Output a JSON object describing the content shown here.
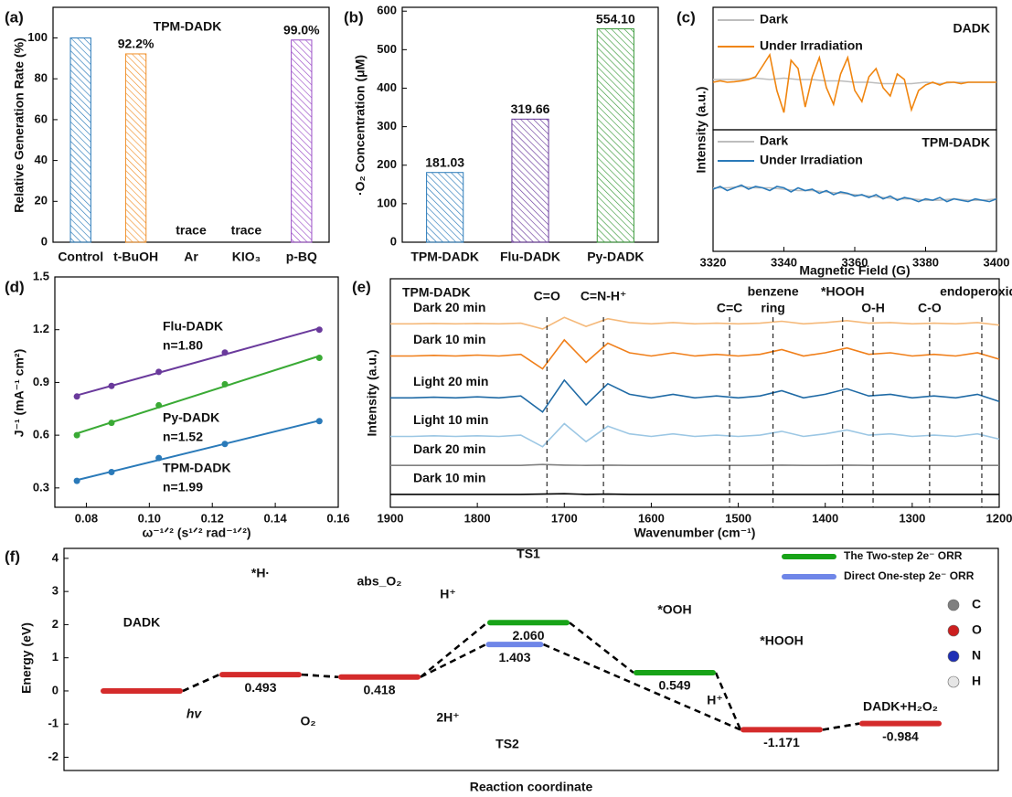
{
  "chart_data": [
    {
      "type": "bar",
      "panel_label": "(a)",
      "annotation": "TPM-DADK",
      "annotation_color": "#2a7ab9",
      "ylabel": "Relative Generation Rate (%)",
      "categories": [
        "Control",
        "t-BuOH",
        "Ar",
        "KIO₃",
        "p-BQ"
      ],
      "values": [
        100,
        92.2,
        null,
        null,
        99.0
      ],
      "value_labels": [
        null,
        "92.2%",
        "trace",
        "trace",
        "99.0%"
      ],
      "colors": [
        "#2a7ab9",
        "#f0902a",
        "#2a7ab9",
        "#2a7ab9",
        "#9b4fc7"
      ],
      "ylim": [
        0,
        115
      ],
      "yticks": [
        0,
        20,
        40,
        60,
        80,
        100
      ]
    },
    {
      "type": "bar",
      "panel_label": "(b)",
      "ylabel": "·O₂ Concentration (μM)",
      "categories": [
        "TPM-DADK",
        "Flu-DADK",
        "Py-DADK"
      ],
      "values": [
        181.03,
        319.66,
        554.1
      ],
      "value_labels": [
        "181.03",
        "319.66",
        "554.10"
      ],
      "colors": [
        "#2a7ab9",
        "#6a3a9c",
        "#3a9a3a"
      ],
      "ylim": [
        0,
        610
      ],
      "yticks": [
        0,
        100,
        200,
        300,
        400,
        500,
        600
      ]
    },
    {
      "type": "line",
      "panel_label": "(c)",
      "annotation": "DADK",
      "annotation_color": "#f0850f",
      "xlim": [
        3320,
        3400
      ],
      "ylim": [
        -1.73,
        2.73
      ],
      "series": [
        {
          "name": "Dark",
          "color": "#bdbdbd",
          "x": [
            3320,
            3324,
            3328,
            3332,
            3336,
            3340,
            3344,
            3348,
            3352,
            3356,
            3360,
            3364,
            3368,
            3372,
            3376,
            3380,
            3384,
            3388,
            3392,
            3396,
            3400
          ],
          "values": [
            0.1,
            0.1,
            0.1,
            0.15,
            0.1,
            0.15,
            0.1,
            0.1,
            0.05,
            0.05,
            0,
            0,
            -0.05,
            -0.05,
            -0.05,
            0,
            -0.05,
            0,
            0,
            0,
            0
          ]
        },
        {
          "name": "Under Irradiation",
          "color": "#f0850f",
          "x": [
            3320,
            3322,
            3324,
            3326,
            3328,
            3330,
            3332,
            3334,
            3336,
            3338,
            3340,
            3342,
            3344,
            3346,
            3348,
            3350,
            3352,
            3354,
            3356,
            3358,
            3360,
            3362,
            3364,
            3366,
            3368,
            3370,
            3372,
            3374,
            3376,
            3378,
            3380,
            3382,
            3384,
            3386,
            3388,
            3390,
            3392,
            3394,
            3396,
            3398,
            3400
          ],
          "values": [
            0,
            0.05,
            0,
            0.02,
            0.05,
            0.1,
            0.2,
            0.6,
            1.0,
            -0.3,
            -1.1,
            0.8,
            0.5,
            -0.9,
            0.2,
            0.9,
            -0.2,
            -0.8,
            0.3,
            0.9,
            -0.3,
            -0.7,
            0.2,
            0.5,
            -0.2,
            -0.5,
            0.3,
            0.1,
            -1.0,
            -0.3,
            -0.1,
            0,
            -0.1,
            0,
            0,
            -0.05,
            0,
            0,
            0,
            0,
            0
          ]
        }
      ]
    },
    {
      "type": "line",
      "annotation": "TPM-DADK",
      "annotation_color": "#2a7ab9",
      "xlabel": "Magnetic Field (G)",
      "ylabel": "Intensity (a.u.)",
      "xlim": [
        3320,
        3400
      ],
      "xticks": [
        3320,
        3340,
        3360,
        3380,
        3400
      ],
      "ylim": [
        -2,
        2.4
      ],
      "series": [
        {
          "name": "Dark",
          "color": "#bdbdbd",
          "x": [
            3320,
            3324,
            3328,
            3332,
            3336,
            3340,
            3344,
            3348,
            3352,
            3356,
            3360,
            3364,
            3368,
            3372,
            3376,
            3380,
            3384,
            3388,
            3392,
            3396,
            3400
          ],
          "values": [
            0.3,
            0.3,
            0.35,
            0.3,
            0.3,
            0.25,
            0.2,
            0.2,
            0.15,
            0.1,
            0.05,
            0,
            -0.05,
            -0.1,
            -0.1,
            -0.15,
            -0.15,
            -0.1,
            -0.15,
            -0.15,
            -0.1
          ]
        },
        {
          "name": "Under Irradiation",
          "color": "#2a7ab9",
          "x": [
            3320,
            3322,
            3324,
            3326,
            3328,
            3330,
            3332,
            3334,
            3336,
            3338,
            3340,
            3342,
            3344,
            3346,
            3348,
            3350,
            3352,
            3354,
            3356,
            3358,
            3360,
            3362,
            3364,
            3366,
            3368,
            3370,
            3372,
            3374,
            3376,
            3378,
            3380,
            3382,
            3384,
            3386,
            3388,
            3390,
            3392,
            3394,
            3396,
            3398,
            3400
          ],
          "values": [
            0.25,
            0.35,
            0.2,
            0.3,
            0.4,
            0.25,
            0.35,
            0.3,
            0.2,
            0.35,
            0.3,
            0.15,
            0.3,
            0.2,
            0.25,
            0.1,
            0.2,
            0.05,
            0.15,
            0.1,
            0,
            0.05,
            -0.05,
            0.05,
            -0.1,
            0,
            -0.15,
            -0.05,
            -0.1,
            -0.2,
            -0.1,
            -0.15,
            -0.05,
            -0.2,
            -0.1,
            -0.15,
            -0.2,
            -0.1,
            -0.15,
            -0.2,
            -0.1
          ]
        }
      ]
    },
    {
      "type": "scatter",
      "panel_label": "(d)",
      "xlabel": "ω⁻¹ᐟ² (s¹ᐟ² rad⁻¹ᐟ²)",
      "ylabel": "J⁻¹ (mA⁻¹ cm²)",
      "xlim": [
        0.07,
        0.16
      ],
      "xticks": [
        0.08,
        {
          "value": 0.1,
          "label": "0.10"
        },
        0.12,
        0.14,
        0.16
      ],
      "ylim": [
        0.19,
        1.5
      ],
      "yticks": [
        0.3,
        0.6,
        0.9,
        1.2,
        1.5
      ],
      "series": [
        {
          "name": "Flu-DADK",
          "annotation": "n=1.80",
          "color": "#6a3a9c",
          "x": [
            0.077,
            0.088,
            0.103,
            0.124,
            0.154
          ],
          "values": [
            0.82,
            0.88,
            0.96,
            1.07,
            1.2
          ]
        },
        {
          "name": "Py-DADK",
          "annotation": "n=1.52",
          "color": "#3aaa35",
          "x": [
            0.077,
            0.088,
            0.103,
            0.124,
            0.154
          ],
          "values": [
            0.6,
            0.67,
            0.77,
            0.89,
            1.04
          ]
        },
        {
          "name": "TPM-DADK",
          "annotation": "n=1.99",
          "color": "#2a7ab9",
          "x": [
            0.077,
            0.088,
            0.103,
            0.124,
            0.154
          ],
          "values": [
            0.34,
            0.39,
            0.47,
            0.55,
            0.68
          ]
        }
      ]
    },
    {
      "type": "line",
      "panel_label": "(e)",
      "annotation": "TPM-DADK",
      "annotation_color": "#2a7ab9",
      "xlabel": "Wavenumber (cm⁻¹)",
      "ylabel": "Intensity (a.u.)",
      "xlim": [
        1900,
        1200
      ],
      "xticks": [
        1900,
        1800,
        1700,
        1600,
        1500,
        1400,
        1300,
        1200
      ],
      "ylim": [
        0,
        7.1
      ],
      "x": [
        1900,
        1875,
        1850,
        1825,
        1800,
        1775,
        1750,
        1725,
        1700,
        1675,
        1650,
        1625,
        1600,
        1575,
        1550,
        1525,
        1500,
        1475,
        1450,
        1425,
        1400,
        1375,
        1350,
        1325,
        1300,
        1275,
        1250,
        1225,
        1200
      ],
      "series": [
        {
          "name": "Dark 20 min",
          "color": "#f5b97a",
          "values": [
            5.7,
            5.7,
            5.71,
            5.7,
            5.71,
            5.7,
            5.72,
            5.54,
            5.9,
            5.62,
            5.86,
            5.74,
            5.7,
            5.74,
            5.7,
            5.72,
            5.7,
            5.72,
            5.78,
            5.7,
            5.74,
            5.8,
            5.72,
            5.74,
            5.7,
            5.72,
            5.7,
            5.74,
            5.66
          ]
        },
        {
          "name": "Dark 10 min",
          "color": "#f07f1a",
          "values": [
            4.7,
            4.7,
            4.72,
            4.7,
            4.73,
            4.7,
            4.75,
            4.3,
            5.2,
            4.5,
            5.1,
            4.8,
            4.7,
            4.8,
            4.7,
            4.75,
            4.7,
            4.75,
            4.9,
            4.7,
            4.8,
            4.95,
            4.75,
            4.8,
            4.7,
            4.75,
            4.7,
            4.8,
            4.6
          ]
        },
        {
          "name": "Light 20 min",
          "color": "#1f6aa5",
          "values": [
            3.4,
            3.4,
            3.42,
            3.4,
            3.43,
            3.4,
            3.46,
            2.96,
            3.95,
            3.18,
            3.84,
            3.51,
            3.4,
            3.51,
            3.4,
            3.46,
            3.4,
            3.46,
            3.62,
            3.4,
            3.51,
            3.68,
            3.46,
            3.51,
            3.4,
            3.46,
            3.4,
            3.51,
            3.29
          ]
        },
        {
          "name": "Light 10 min",
          "color": "#9cc7e4",
          "values": [
            2.2,
            2.2,
            2.22,
            2.2,
            2.22,
            2.2,
            2.24,
            1.88,
            2.6,
            2.04,
            2.52,
            2.28,
            2.2,
            2.28,
            2.2,
            2.24,
            2.2,
            2.24,
            2.36,
            2.2,
            2.28,
            2.4,
            2.24,
            2.28,
            2.2,
            2.24,
            2.2,
            2.28,
            2.12
          ]
        },
        {
          "name": "Dark 20 min",
          "color": "#808080",
          "values": [
            1.3,
            1.3,
            1.3,
            1.3,
            1.3,
            1.3,
            1.3,
            1.33,
            1.31,
            1.3,
            1.31,
            1.3,
            1.3,
            1.3,
            1.3,
            1.3,
            1.3,
            1.3,
            1.31,
            1.3,
            1.3,
            1.31,
            1.3,
            1.3,
            1.3,
            1.3,
            1.3,
            1.3,
            1.3
          ]
        },
        {
          "name": "Dark 10 min",
          "color": "#000000",
          "values": [
            0.4,
            0.4,
            0.4,
            0.4,
            0.4,
            0.4,
            0.4,
            0.41,
            0.42,
            0.4,
            0.41,
            0.4,
            0.4,
            0.4,
            0.4,
            0.4,
            0.4,
            0.4,
            0.4,
            0.4,
            0.4,
            0.4,
            0.4,
            0.4,
            0.4,
            0.4,
            0.4,
            0.4,
            0.4
          ]
        }
      ],
      "peaks": [
        {
          "text": [
            "C=O"
          ],
          "x": 1720
        },
        {
          "text": [
            "C=N-H⁺"
          ],
          "x": 1655
        },
        {
          "text": [
            "C=C"
          ],
          "x": 1510
        },
        {
          "text": [
            "benzene",
            "ring"
          ],
          "x": 1460
        },
        {
          "text": [
            "*HOOH"
          ],
          "x": 1380
        },
        {
          "text": [
            "O-H"
          ],
          "x": 1345
        },
        {
          "text": [
            "C-O"
          ],
          "x": 1280
        },
        {
          "text": [
            "endoperoxide"
          ],
          "x": 1220
        }
      ]
    },
    {
      "type": "energy",
      "panel_label": "(f)",
      "xlabel": "Reaction coordinate",
      "ylabel": "Energy (eV)",
      "ylim": [
        -2.4,
        4.3
      ],
      "yticks": [
        -2,
        -1,
        0,
        1,
        2,
        3,
        4
      ],
      "categories": [
        "DADK",
        "*H·",
        "abs_O₂",
        "TS1",
        "*OOH",
        "*HOOH",
        "DADK+H₂O₂"
      ],
      "series": [
        {
          "color": "#d42b2b",
          "values": [
            0,
            0.493,
            0.418,
            null,
            null,
            -1.171,
            -0.984
          ],
          "value_labels": [
            null,
            "0.493",
            "0.418",
            null,
            null,
            "-1.171",
            "-0.984"
          ]
        },
        {
          "name": "The Two-step 2e⁻ ORR",
          "color": "#18a318",
          "values": [
            null,
            null,
            null,
            2.06,
            0.549,
            null,
            null
          ],
          "value_labels": [
            null,
            null,
            null,
            "2.060",
            "0.549",
            null,
            null
          ]
        },
        {
          "name": "Direct One-step 2e⁻ ORR",
          "color": "#6f86e8",
          "values": [
            null,
            null,
            null,
            1.403,
            null,
            null,
            null
          ],
          "value_labels": [
            null,
            null,
            null,
            "1.403",
            null,
            null,
            null
          ]
        }
      ],
      "annotations": [
        "TS2",
        "hv",
        "O₂",
        "2H⁺",
        "H⁺",
        "H⁺"
      ],
      "atom_legend": [
        {
          "label": "C",
          "color": "#7f7f7f"
        },
        {
          "label": "O",
          "color": "#cc1f1f"
        },
        {
          "label": "N",
          "color": "#1f2fb5"
        },
        {
          "label": "H",
          "color": "#e6e6e6"
        }
      ]
    }
  ]
}
